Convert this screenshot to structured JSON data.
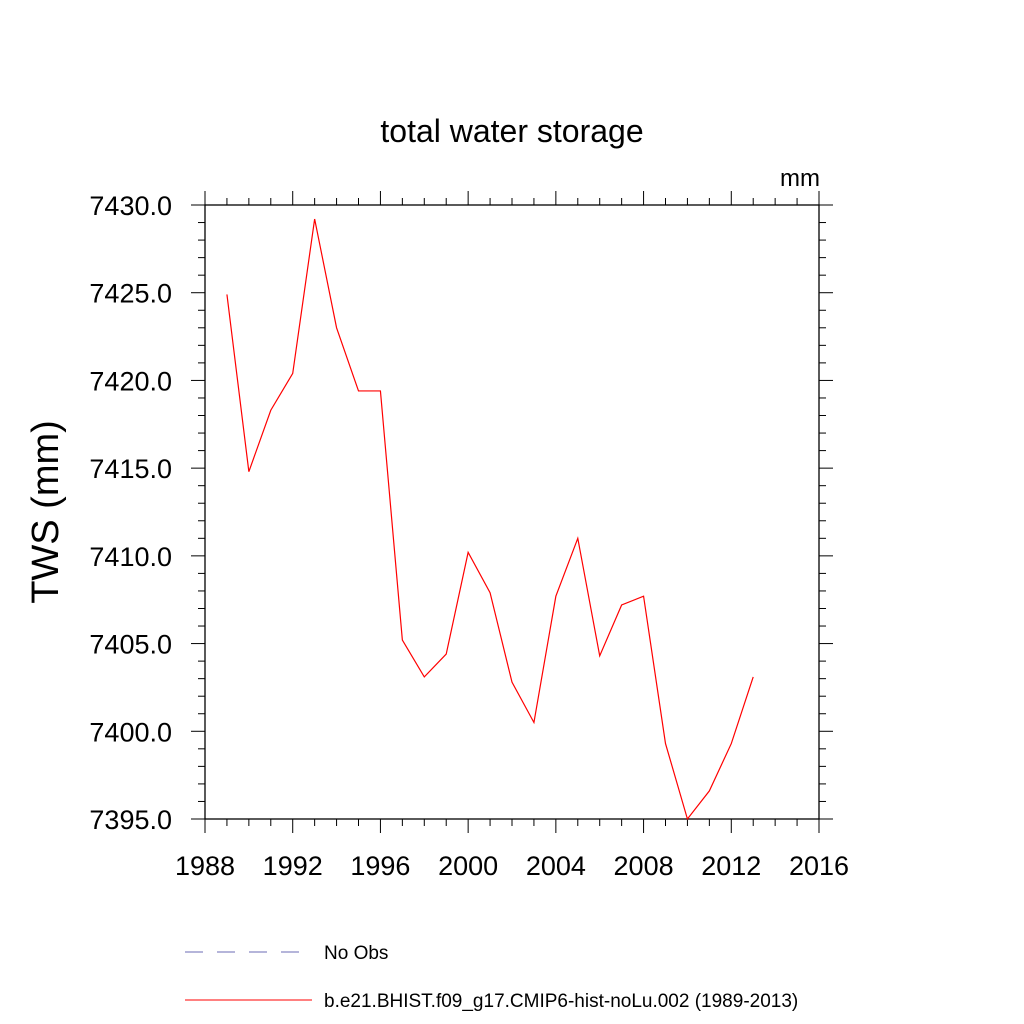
{
  "chart_data": {
    "type": "line",
    "title": "total water storage",
    "units_label": "mm",
    "ylabel": "TWS  (mm)",
    "xlabel": "",
    "xlim": [
      1988,
      2016
    ],
    "ylim": [
      7395.0,
      7430.0
    ],
    "x_ticks": [
      1988,
      1992,
      1996,
      2000,
      2004,
      2008,
      2012,
      2016
    ],
    "y_ticks": [
      7395.0,
      7400.0,
      7405.0,
      7410.0,
      7415.0,
      7420.0,
      7425.0,
      7430.0
    ],
    "x_tick_labels": [
      "1988",
      "1992",
      "1996",
      "2000",
      "2004",
      "2008",
      "2012",
      "2016"
    ],
    "y_tick_labels": [
      "7395.0",
      "7400.0",
      "7405.0",
      "7410.0",
      "7415.0",
      "7420.0",
      "7425.0",
      "7430.0"
    ],
    "grid": false,
    "legend_position": "bottom",
    "series": [
      {
        "name": "b.e21.BHIST.f09_g17.CMIP6-hist-noLu.002 (1989-2013)",
        "color": "#ff0000",
        "style": "solid",
        "x": [
          1989,
          1990,
          1991,
          1992,
          1993,
          1994,
          1995,
          1996,
          1997,
          1998,
          1999,
          2000,
          2001,
          2002,
          2003,
          2004,
          2005,
          2006,
          2007,
          2008,
          2009,
          2010,
          2011,
          2012,
          2013
        ],
        "y": [
          7424.9,
          7414.8,
          7418.3,
          7420.4,
          7429.2,
          7423.0,
          7419.4,
          7419.4,
          7405.2,
          7403.1,
          7404.4,
          7410.2,
          7407.9,
          7402.8,
          7400.5,
          7407.7,
          7411.0,
          7404.3,
          7407.2,
          7407.7,
          7399.3,
          7395.0,
          7396.6,
          7399.3,
          7403.1
        ]
      }
    ],
    "legend": [
      {
        "label": "No Obs",
        "color": "#6b6bb5",
        "style": "dashed"
      },
      {
        "label": "b.e21.BHIST.f09_g17.CMIP6-hist-noLu.002 (1989-2013)",
        "color": "#ff0000",
        "style": "solid"
      }
    ]
  }
}
